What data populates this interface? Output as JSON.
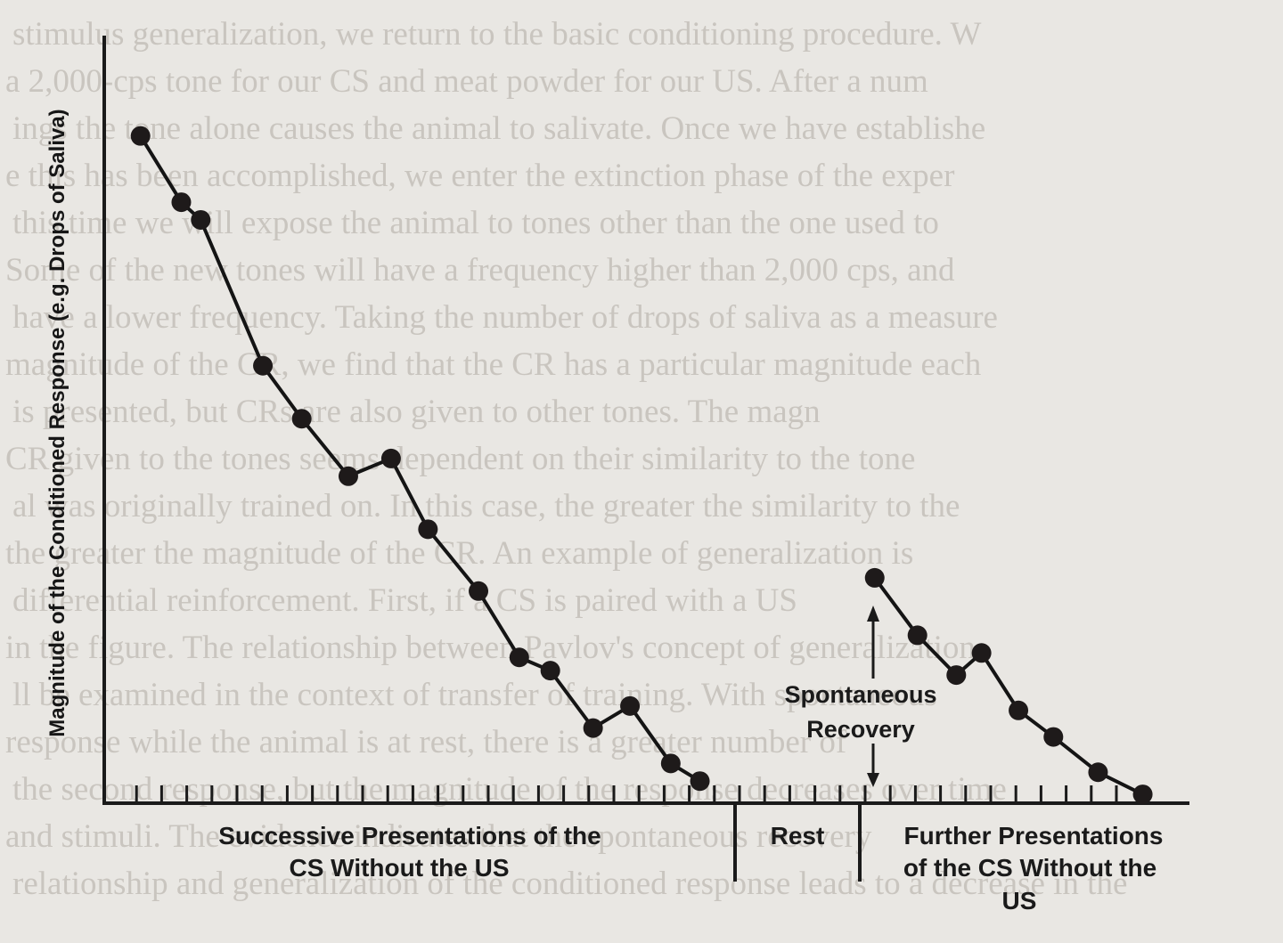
{
  "background_text": [
    "stimulus generalization, we return to the basic conditioning procedure. W",
    "a 2,000-cps tone for our CS and meat powder for our US. After a num",
    "ings the tone alone causes the animal to salivate. Once we have establishe",
    "e this has been accomplished, we enter the extinction phase of the exper",
    "this time we will expose the animal to tones other than the one used to",
    "Some of the new tones will have a frequency higher than 2,000 cps, and",
    "have a lower frequency. Taking the number of drops of saliva as a measure",
    "magnitude of the CR, we find that the CR has a particular magnitude each",
    "is presented, but CRs are also given to other tones. The magn",
    "CR given to the tones seems dependent on their similarity to the tone",
    "al was originally trained on. In this case, the greater the similarity to the",
    "the greater the magnitude of the CR. An example of generalization is",
    "differential reinforcement. First, if a CS is paired with a US",
    "in the figure. The relationship between Pavlov's concept of generalization",
    "ll be examined in the context of transfer of training. With spontaneous",
    "response while the animal is at rest, there is a greater number of",
    "the second response, but the magnitude of the response decreases over time",
    "and stimuli. The evidence indicates that the spontaneous recovery",
    "relationship and generalization of the conditioned response leads to a decrease in the"
  ],
  "chart_data": {
    "type": "line",
    "title": "",
    "ylabel": "Magnitude of the Conditioned Response (e.g. Drops of Saliva)",
    "xlabel": "",
    "grid": false,
    "legend": "none",
    "ylim": [
      0,
      16
    ],
    "x_ticks": [
      1,
      2,
      3,
      4,
      5,
      6,
      7,
      8,
      9,
      10,
      11,
      12,
      13,
      14,
      15,
      16,
      17,
      18,
      19,
      20,
      21,
      22,
      23,
      24,
      25,
      26,
      27,
      28,
      29,
      30,
      31,
      32,
      33,
      34,
      35,
      36,
      37,
      38,
      39,
      40
    ],
    "segments": [
      {
        "label": [
          "Successive Presentations of the",
          "CS Without the US"
        ],
        "x_start": 0.3,
        "x_end": 30.7
      },
      {
        "label": [
          "Rest"
        ],
        "x_start": 30.7,
        "x_end": 37.3
      },
      {
        "label": [
          "Further Presentations",
          "of the CS Without the",
          "US"
        ],
        "x_start": 37.3,
        "x_end": 55.7
      }
    ],
    "series": [
      {
        "values": [
          [
            1.5,
            15.1
          ],
          [
            3.6,
            13.6
          ],
          [
            4.6,
            13.2
          ],
          [
            7.8,
            9.9
          ],
          [
            9.8,
            8.7
          ],
          [
            12.2,
            7.4
          ],
          [
            14.4,
            7.8
          ],
          [
            16.3,
            6.2
          ],
          [
            18.9,
            4.8
          ],
          [
            21.0,
            3.3
          ],
          [
            22.6,
            3.0
          ],
          [
            24.8,
            1.7
          ],
          [
            26.7,
            2.2
          ],
          [
            28.8,
            0.9
          ],
          [
            30.3,
            0.5
          ]
        ]
      },
      {
        "values": [
          [
            39.3,
            5.1
          ],
          [
            41.5,
            3.8
          ],
          [
            43.5,
            2.9
          ],
          [
            44.8,
            3.4
          ],
          [
            46.7,
            2.1
          ],
          [
            48.5,
            1.5
          ],
          [
            50.8,
            0.7
          ],
          [
            53.1,
            0.2
          ]
        ]
      }
    ],
    "annotations": {
      "text_lines": [
        "Spontaneous",
        "Recovery"
      ]
    }
  }
}
